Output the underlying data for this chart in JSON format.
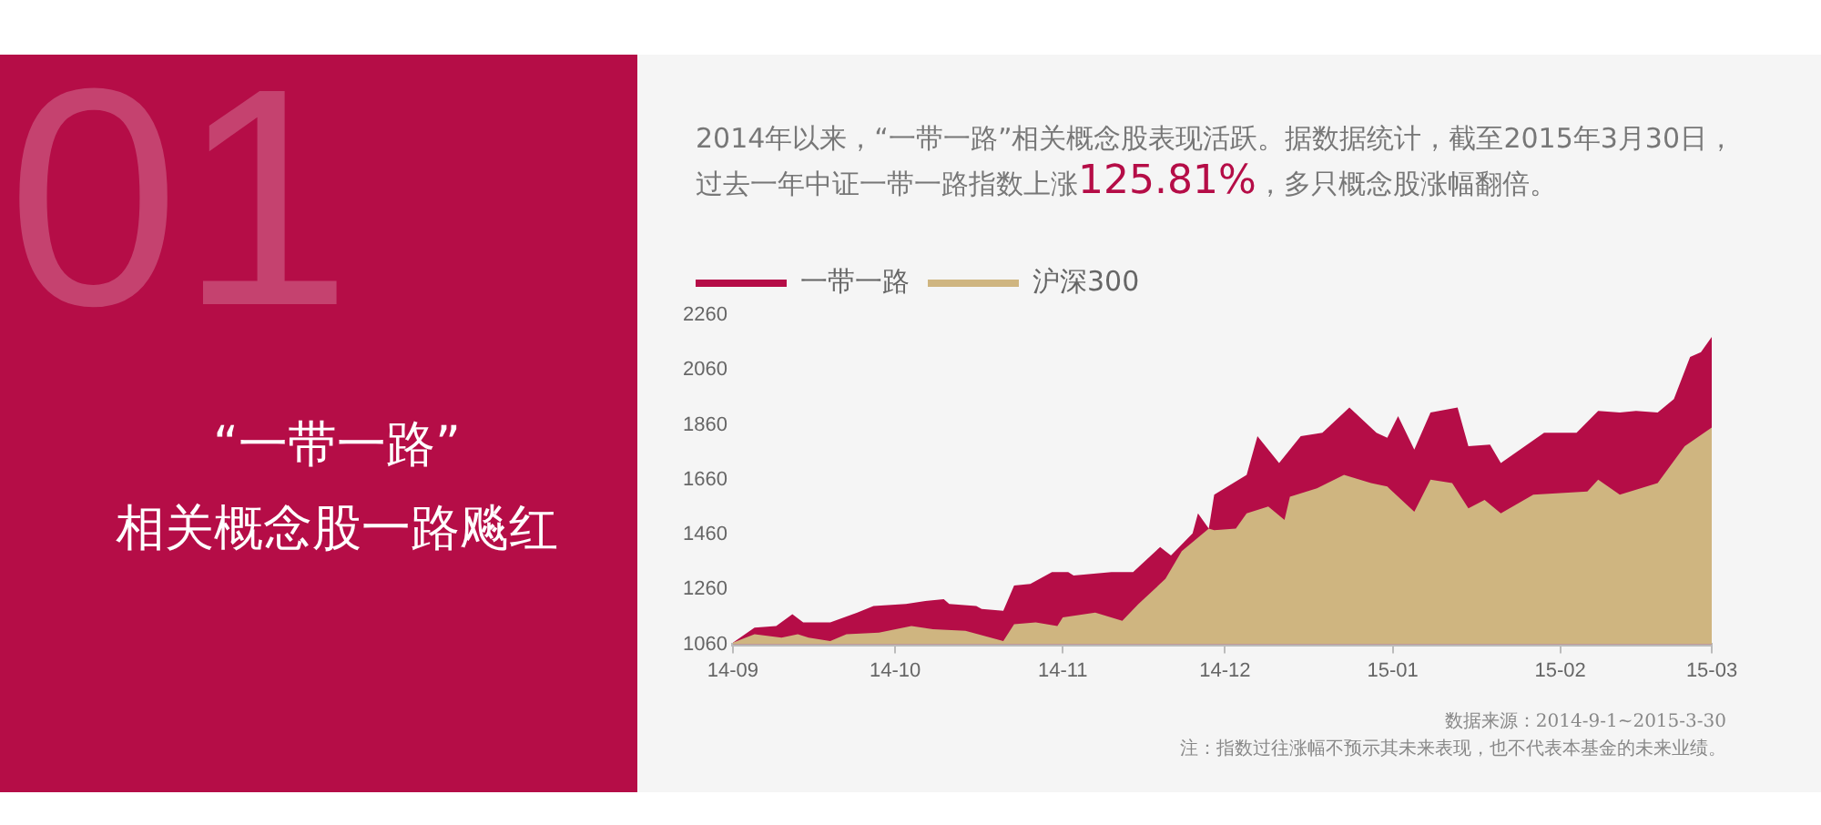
{
  "chart_data": {
    "type": "area",
    "title": "“一带一路”\n相关概念股一路飚红",
    "subtitle": "2014年以来，“一带一路”相关概念股表现活跃。据数据统计，截至2015年3月30日，过去一年中证一带一路指数上涨125.81%，多只概念股涨幅翻倍。",
    "annotations": [
      "01",
      "数据来源：2014-9-1~2015-3-30",
      "注：指数过往涨幅不预示其未来表现，也不代表本基金的未来业绩。"
    ],
    "series": [
      {
        "name": "一带一路",
        "color": "#b50d47",
        "x": [
          "2014-09-01",
          "2014-09-05",
          "2014-09-09",
          "2014-09-12",
          "2014-09-14",
          "2014-09-19",
          "2014-09-24",
          "2014-09-27",
          "2014-10-03",
          "2014-10-07",
          "2014-10-10",
          "2014-10-11",
          "2014-10-16",
          "2014-10-17",
          "2014-10-21",
          "2014-10-23",
          "2014-10-26",
          "2014-10-30",
          "2014-11-02",
          "2014-11-03",
          "2014-11-10",
          "2014-11-14",
          "2014-11-16",
          "2014-11-19",
          "2014-11-21",
          "2014-11-25",
          "2014-11-26",
          "2014-11-28",
          "2014-11-29",
          "2014-12-05",
          "2014-12-07",
          "2014-12-11",
          "2014-12-15",
          "2014-12-19",
          "2014-12-24",
          "2014-12-29",
          "2014-12-31",
          "2015-01-02",
          "2015-01-05",
          "2015-01-08",
          "2015-01-13",
          "2015-01-15",
          "2015-01-19",
          "2015-01-21",
          "2015-01-29",
          "2015-02-04",
          "2015-02-08",
          "2015-02-12",
          "2015-02-15",
          "2015-02-19",
          "2015-02-22",
          "2015-02-25",
          "2015-02-27",
          "2015-03-01"
        ],
        "values": [
          1066,
          1121,
          1127,
          1170,
          1140,
          1140,
          1176,
          1200,
          1207,
          1219,
          1225,
          1207,
          1200,
          1189,
          1182,
          1274,
          1280,
          1323,
          1323,
          1311,
          1323,
          1323,
          1360,
          1415,
          1384,
          1464,
          1537,
          1482,
          1605,
          1678,
          1819,
          1721,
          1819,
          1831,
          1923,
          1831,
          1813,
          1892,
          1770,
          1905,
          1923,
          1782,
          1788,
          1721,
          1831,
          1831,
          1911,
          1905,
          1911,
          1905,
          1954,
          2107,
          2125,
          2180
        ]
      },
      {
        "name": "沪深300",
        "color": "#cfb580",
        "x": [
          "2014-09-01",
          "2014-09-05",
          "2014-09-10",
          "2014-09-13",
          "2014-09-15",
          "2014-09-19",
          "2014-09-22",
          "2014-09-28",
          "2014-10-04",
          "2014-10-08",
          "2014-10-14",
          "2014-10-21",
          "2014-10-23",
          "2014-10-27",
          "2014-10-31",
          "2014-11-01",
          "2014-11-07",
          "2014-11-12",
          "2014-11-15",
          "2014-11-20",
          "2014-11-23",
          "2014-11-28",
          "2014-11-29",
          "2014-12-03",
          "2014-12-05",
          "2014-12-09",
          "2014-12-12",
          "2014-12-13",
          "2014-12-18",
          "2014-12-23",
          "2014-12-28",
          "2014-12-31",
          "2015-01-05",
          "2015-01-08",
          "2015-01-12",
          "2015-01-15",
          "2015-01-18",
          "2015-01-21",
          "2015-01-27",
          "2015-02-06",
          "2015-02-08",
          "2015-02-12",
          "2015-02-19",
          "2015-02-24",
          "2015-03-01"
        ],
        "values": [
          1066,
          1097,
          1084,
          1097,
          1084,
          1072,
          1097,
          1103,
          1127,
          1115,
          1109,
          1072,
          1133,
          1140,
          1127,
          1158,
          1176,
          1146,
          1207,
          1299,
          1400,
          1482,
          1476,
          1482,
          1537,
          1562,
          1513,
          1598,
          1629,
          1678,
          1648,
          1635,
          1543,
          1660,
          1648,
          1556,
          1586,
          1537,
          1605,
          1617,
          1660,
          1605,
          1648,
          1782,
          1850
        ]
      }
    ],
    "xlim": [
      "2014-09-01",
      "2015-03-01"
    ],
    "xticks": [
      {
        "value": "2014-09-01",
        "label": "14-09"
      },
      {
        "value": "2014-10-01",
        "label": "14-10"
      },
      {
        "value": "2014-11-01",
        "label": "14-11"
      },
      {
        "value": "2014-12-01",
        "label": "14-12"
      },
      {
        "value": "2015-01-01",
        "label": "15-01"
      },
      {
        "value": "2015-02-01",
        "label": "15-02"
      },
      {
        "value": "2015-03-01",
        "label": "15-03"
      }
    ],
    "ylim": [
      1060,
      2260
    ],
    "yticks": [
      1060,
      1260,
      1460,
      1660,
      1860,
      2060,
      2260
    ],
    "grid": false,
    "legend": "top left"
  }
}
